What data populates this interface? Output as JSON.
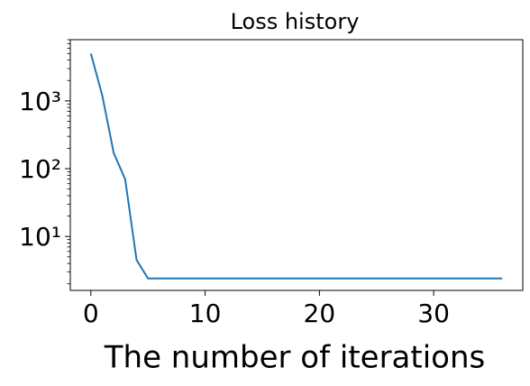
{
  "chart_data": {
    "type": "line",
    "title": "Loss history",
    "x_label": "The number of iterations",
    "x": [
      0,
      1,
      2,
      3,
      4,
      5,
      6,
      7,
      8,
      9,
      10,
      11,
      12,
      13,
      14,
      15,
      16,
      17,
      18,
      19,
      20,
      21,
      22,
      23,
      24,
      25,
      26,
      27,
      28,
      29,
      30,
      31,
      32,
      33,
      34,
      35,
      36
    ],
    "series": [
      {
        "name": "loss",
        "color": "#1f77b4",
        "values": [
          5000,
          1200,
          170,
          70,
          4.5,
          2.4,
          2.4,
          2.4,
          2.4,
          2.4,
          2.4,
          2.4,
          2.4,
          2.4,
          2.4,
          2.4,
          2.4,
          2.4,
          2.4,
          2.4,
          2.4,
          2.4,
          2.4,
          2.4,
          2.4,
          2.4,
          2.4,
          2.4,
          2.4,
          2.4,
          2.4,
          2.4,
          2.4,
          2.4,
          2.4,
          2.4,
          2.4
        ]
      }
    ],
    "xlim": [
      -1.8,
      37.8
    ],
    "xticks": [
      0,
      10,
      20,
      30
    ],
    "ylim": [
      1.6,
      8000
    ],
    "yscale": "log",
    "yticks": [
      {
        "value": 10,
        "label": "10¹"
      },
      {
        "value": 100,
        "label": "10²"
      },
      {
        "value": 1000,
        "label": "10³"
      }
    ]
  }
}
